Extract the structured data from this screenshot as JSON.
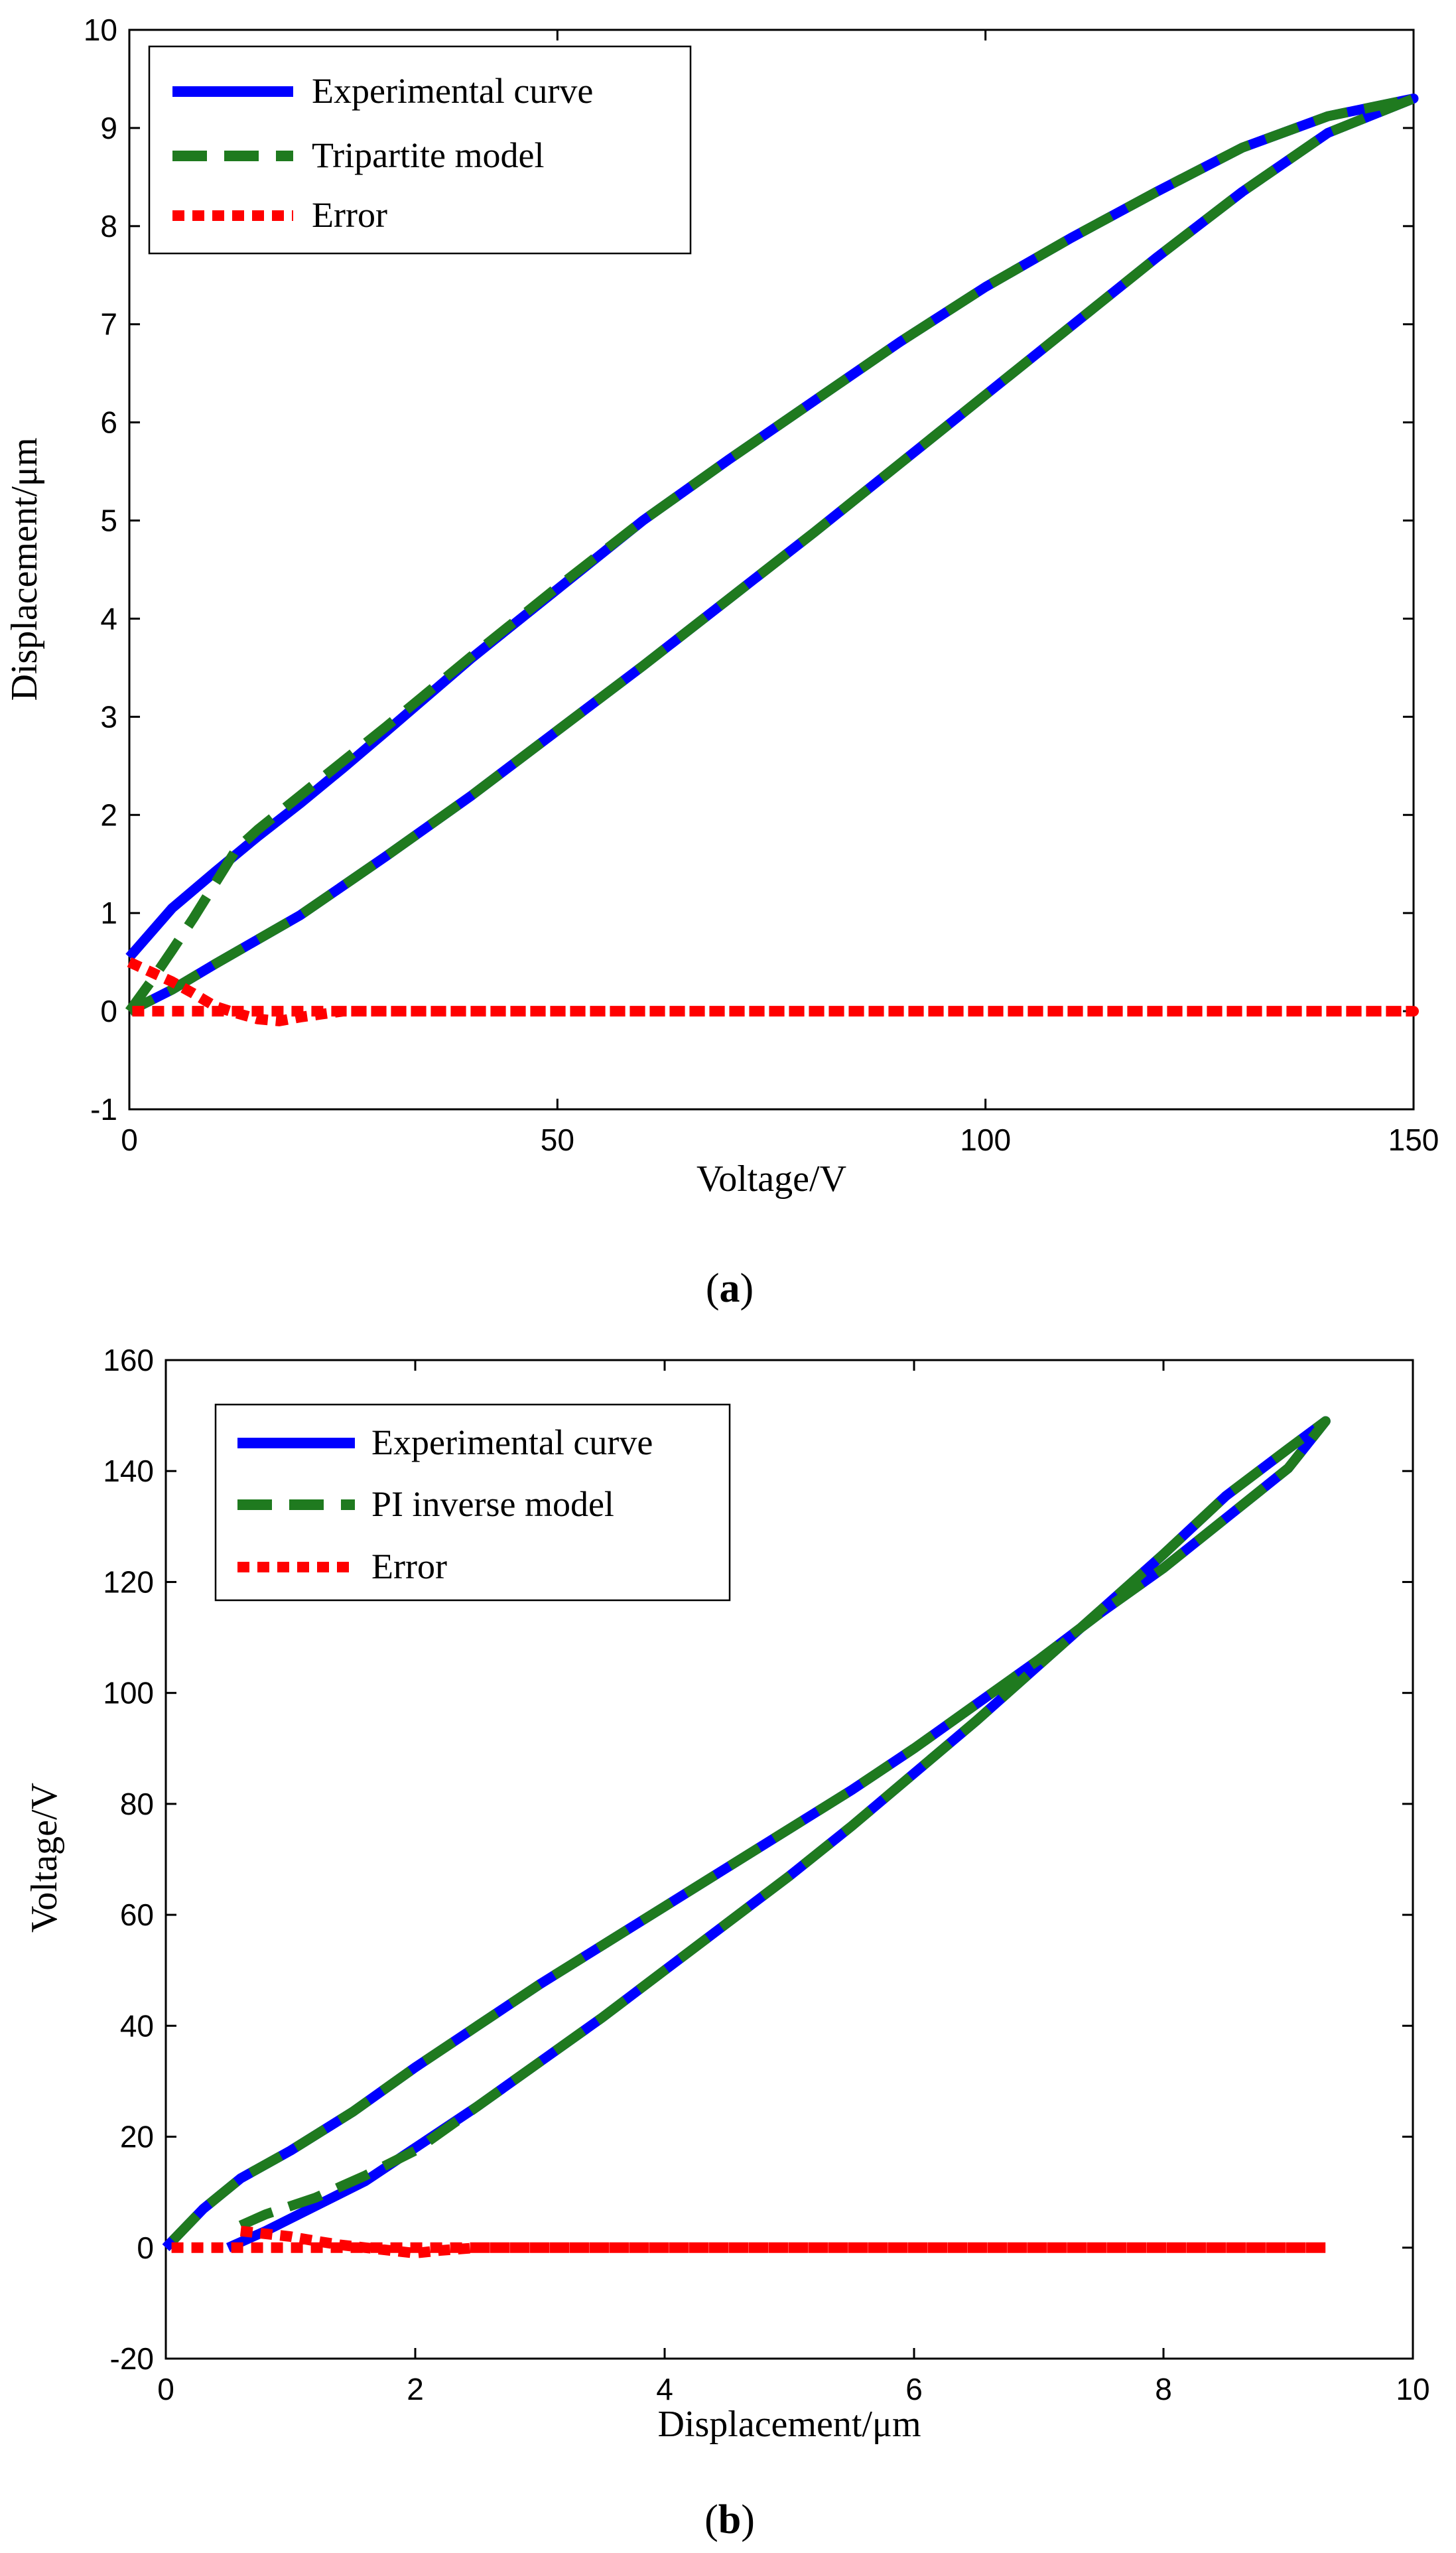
{
  "chart_data": [
    {
      "type": "line",
      "caption_letter": "a",
      "xlabel": "Voltage/V",
      "ylabel": "Displacement/μm",
      "xlim": [
        0,
        150
      ],
      "ylim": [
        -1,
        10
      ],
      "xticks": [
        0,
        50,
        100,
        150
      ],
      "yticks": [
        -1,
        0,
        1,
        2,
        3,
        4,
        5,
        6,
        7,
        8,
        9,
        10
      ],
      "legend_position": "top-left",
      "series": [
        {
          "name": "Experimental curve",
          "color": "#0000ff",
          "style": "solid",
          "x": [
            0,
            5,
            10,
            15,
            20,
            25,
            30,
            40,
            50,
            60,
            70,
            80,
            90,
            100,
            110,
            120,
            130,
            140,
            150,
            140,
            130,
            120,
            110,
            100,
            90,
            80,
            70,
            60,
            50,
            40,
            30,
            20,
            10,
            5,
            0
          ],
          "y": [
            0.55,
            1.05,
            1.42,
            1.78,
            2.12,
            2.48,
            2.85,
            3.6,
            4.3,
            5.0,
            5.62,
            6.22,
            6.82,
            7.38,
            7.88,
            8.35,
            8.8,
            9.12,
            9.3,
            8.95,
            8.35,
            7.68,
            6.98,
            6.28,
            5.58,
            4.88,
            4.2,
            3.52,
            2.86,
            2.2,
            1.58,
            0.98,
            0.48,
            0.22,
            0.0
          ]
        },
        {
          "name": "Tripartite model",
          "color": "#1f7a1f",
          "style": "dashed",
          "x": [
            0,
            2.5,
            5,
            7.5,
            10,
            12.5,
            15,
            20,
            25,
            30,
            40,
            50,
            60,
            70,
            80,
            90,
            100,
            110,
            120,
            130,
            140,
            150,
            140,
            130,
            120,
            110,
            100,
            90,
            80,
            70,
            60,
            50,
            40,
            30,
            20,
            10,
            5,
            0
          ],
          "y": [
            0.0,
            0.3,
            0.62,
            0.95,
            1.3,
            1.65,
            1.85,
            2.2,
            2.55,
            2.9,
            3.62,
            4.32,
            5.0,
            5.62,
            6.22,
            6.82,
            7.38,
            7.88,
            8.35,
            8.8,
            9.12,
            9.3,
            8.95,
            8.35,
            7.68,
            6.98,
            6.28,
            5.58,
            4.88,
            4.2,
            3.52,
            2.86,
            2.2,
            1.58,
            0.98,
            0.48,
            0.22,
            0.0
          ]
        },
        {
          "name": "Error",
          "color": "#ff0000",
          "style": "dotted",
          "x": [
            0,
            2.5,
            5,
            7.5,
            10,
            12.5,
            15,
            17.5,
            20,
            22.5,
            25,
            30,
            40,
            50,
            60,
            70,
            80,
            90,
            100,
            110,
            120,
            130,
            140,
            150,
            140,
            130,
            120,
            110,
            100,
            90,
            80,
            70,
            60,
            50,
            40,
            30,
            20,
            10,
            5,
            0
          ],
          "y": [
            0.5,
            0.4,
            0.3,
            0.18,
            0.05,
            -0.02,
            -0.08,
            -0.1,
            -0.06,
            -0.03,
            0.0,
            0.0,
            0.0,
            0.0,
            0.0,
            0.0,
            0.0,
            0.0,
            0.0,
            0.0,
            0.0,
            0.0,
            0.0,
            0.0,
            0.0,
            0.0,
            0.0,
            0.0,
            0.0,
            0.0,
            0.0,
            0.0,
            0.0,
            0.0,
            0.0,
            0.0,
            0.0,
            0.0,
            0.0,
            0.0
          ]
        }
      ]
    },
    {
      "type": "line",
      "caption_letter": "b",
      "xlabel": "Displacement/μm",
      "ylabel": "Voltage/V",
      "xlim": [
        0,
        10
      ],
      "ylim": [
        -20,
        160
      ],
      "xticks": [
        0,
        2,
        4,
        6,
        8,
        10
      ],
      "yticks": [
        -20,
        0,
        20,
        40,
        60,
        80,
        100,
        120,
        140,
        160
      ],
      "legend_position": "top-left",
      "series": [
        {
          "name": "Experimental curve",
          "color": "#0000ff",
          "style": "solid",
          "x": [
            0.5,
            0.8,
            1.2,
            1.6,
            2.0,
            2.5,
            3.0,
            3.5,
            4.0,
            4.5,
            5.0,
            5.5,
            6.0,
            6.5,
            7.0,
            7.5,
            8.0,
            8.5,
            9.0,
            9.3,
            9.0,
            8.5,
            8.0,
            7.5,
            7.0,
            6.5,
            6.0,
            5.5,
            5.0,
            4.5,
            4.0,
            3.5,
            3.0,
            2.5,
            2.0,
            1.5,
            1.0,
            0.6,
            0.3,
            0.0
          ],
          "y": [
            0.0,
            3.0,
            7.5,
            12.0,
            18.0,
            25.5,
            33.5,
            41.5,
            50.0,
            58.5,
            67.0,
            76.0,
            85.5,
            95.0,
            105.0,
            115.0,
            125.0,
            135.5,
            144.0,
            149.0,
            140.5,
            131.5,
            122.5,
            114.5,
            106.0,
            98.0,
            90.0,
            82.5,
            75.5,
            68.5,
            61.5,
            54.5,
            47.5,
            40.0,
            32.5,
            24.5,
            17.5,
            12.5,
            7.0,
            0.0
          ]
        },
        {
          "name": "PI inverse model",
          "color": "#1f7a1f",
          "style": "dashed",
          "x": [
            0.6,
            0.8,
            1.2,
            1.6,
            2.0,
            2.5,
            3.0,
            3.5,
            4.0,
            4.5,
            5.0,
            5.5,
            6.0,
            6.5,
            7.0,
            7.5,
            8.0,
            8.5,
            9.0,
            9.3,
            9.0,
            8.5,
            8.0,
            7.5,
            7.0,
            6.5,
            6.0,
            5.5,
            5.0,
            4.5,
            4.0,
            3.5,
            3.0,
            2.5,
            2.0,
            1.5,
            1.0,
            0.6,
            0.3,
            0.0
          ],
          "y": [
            4.0,
            6.0,
            9.0,
            13.0,
            17.5,
            25.5,
            33.5,
            41.5,
            50.0,
            58.5,
            67.0,
            76.0,
            85.5,
            95.0,
            105.0,
            115.0,
            125.0,
            135.5,
            144.0,
            149.0,
            140.5,
            131.5,
            122.5,
            114.5,
            106.0,
            98.0,
            90.0,
            82.5,
            75.5,
            68.5,
            61.5,
            54.5,
            47.5,
            40.0,
            32.5,
            24.5,
            17.5,
            12.5,
            7.0,
            0.0
          ]
        },
        {
          "name": "Error",
          "color": "#ff0000",
          "style": "dotted",
          "x": [
            0.6,
            0.8,
            1.0,
            1.2,
            1.4,
            1.6,
            1.8,
            2.0,
            2.2,
            2.5,
            3.0,
            4.0,
            5.0,
            6.0,
            7.0,
            8.0,
            9.0,
            9.3,
            9.0,
            8.0,
            7.0,
            6.0,
            5.0,
            4.0,
            3.0,
            2.0,
            1.0,
            0.5,
            0.0
          ],
          "y": [
            3.0,
            2.5,
            2.0,
            1.2,
            0.5,
            0.0,
            -0.5,
            -1.0,
            -0.5,
            0.0,
            0.0,
            0.0,
            0.0,
            0.0,
            0.0,
            0.0,
            0.0,
            0.0,
            0.0,
            0.0,
            0.0,
            0.0,
            0.0,
            0.0,
            0.0,
            0.0,
            0.0,
            0.0,
            0.0
          ]
        }
      ]
    }
  ]
}
